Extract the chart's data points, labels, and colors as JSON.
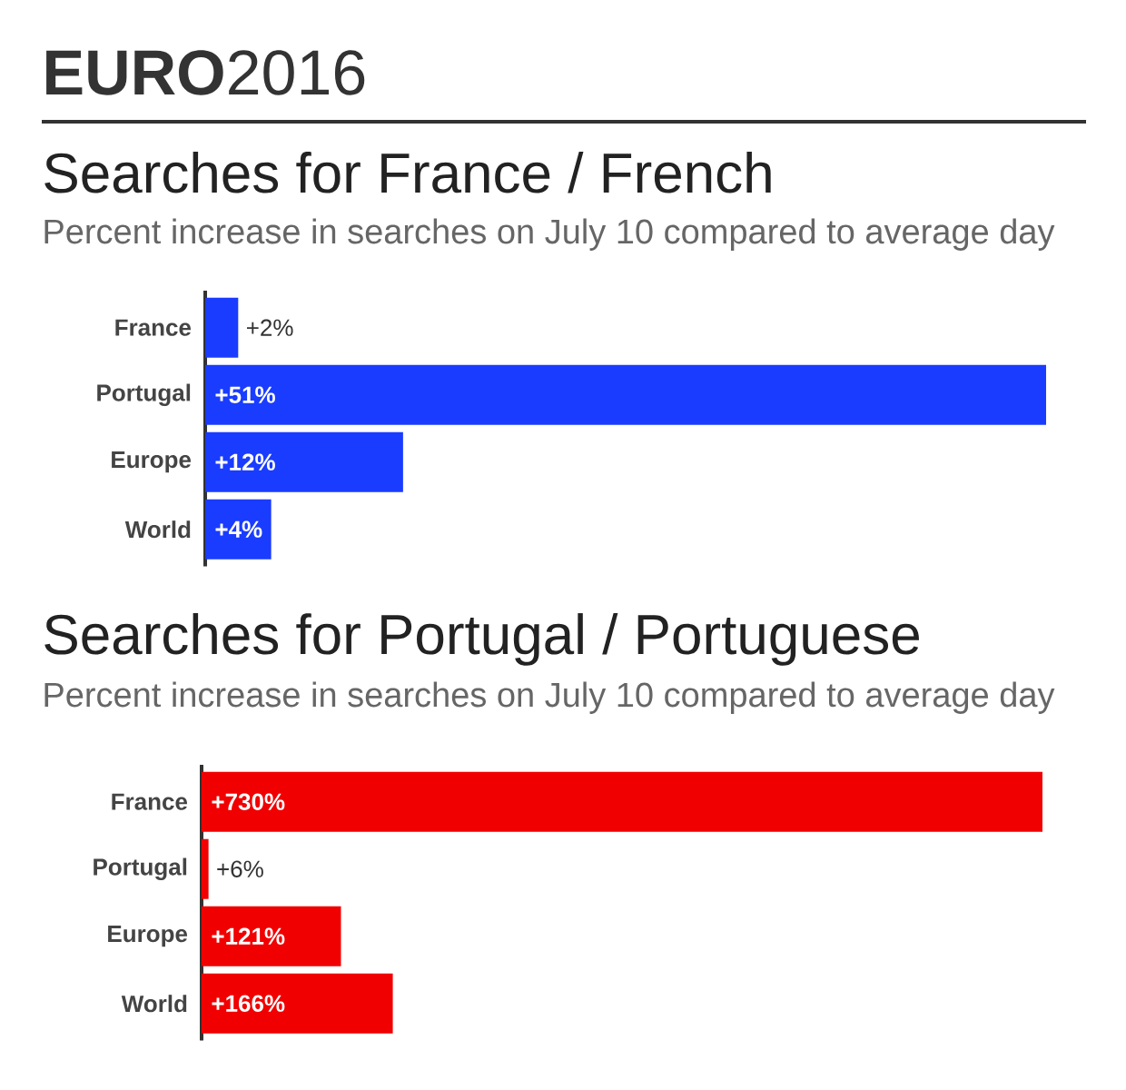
{
  "chart_data": [
    {
      "type": "bar",
      "orientation": "horizontal",
      "title": "Searches for France / French",
      "subtitle": "Percent increase in searches on July 10 compared to average day",
      "annotations": [
        "**EURO**2016"
      ],
      "categories": [
        "France",
        "Portugal",
        "Europe",
        "World"
      ],
      "values": [
        2,
        51,
        12,
        4
      ],
      "value_labels": [
        "+2%",
        "+51%",
        "+12%",
        "+4%"
      ],
      "color": "#1a3cff"
    },
    {
      "type": "bar",
      "orientation": "horizontal",
      "title": "Searches for Portugal / Portuguese",
      "subtitle": "Percent increase in searches on July 10 compared to average day",
      "categories": [
        "France",
        "Portugal",
        "Europe",
        "World"
      ],
      "values": [
        730,
        6,
        121,
        166
      ],
      "value_labels": [
        "+730%",
        "+6%",
        "+121%",
        "+166%"
      ],
      "color": "#f00000"
    }
  ]
}
